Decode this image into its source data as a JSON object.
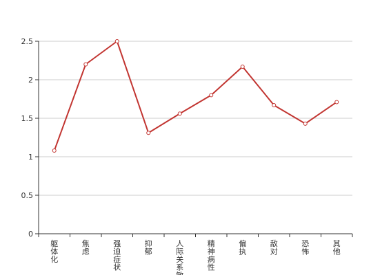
{
  "chart_data": {
    "type": "line",
    "title": "",
    "xlabel": "",
    "ylabel": "",
    "categories": [
      "躯体化",
      "焦虑",
      "强迫症状",
      "抑郁",
      "人际关系敏感",
      "精神病性",
      "偏执",
      "敌对",
      "恐怖",
      "其他"
    ],
    "series": [
      {
        "values": [
          1.08,
          2.2,
          2.5,
          1.31,
          1.56,
          1.8,
          2.17,
          1.67,
          1.43,
          1.71
        ],
        "color": "#c23531"
      }
    ],
    "ylim": [
      0,
      2.5
    ],
    "yticks": [
      0,
      0.5,
      1,
      1.5,
      2,
      2.5
    ],
    "ytick_labels": [
      "0",
      "0.5",
      "1",
      "1.5",
      "2",
      "2.5"
    ],
    "grid": true,
    "legend": "none",
    "grid_color": "#cccccc",
    "axis_color": "#333333"
  }
}
